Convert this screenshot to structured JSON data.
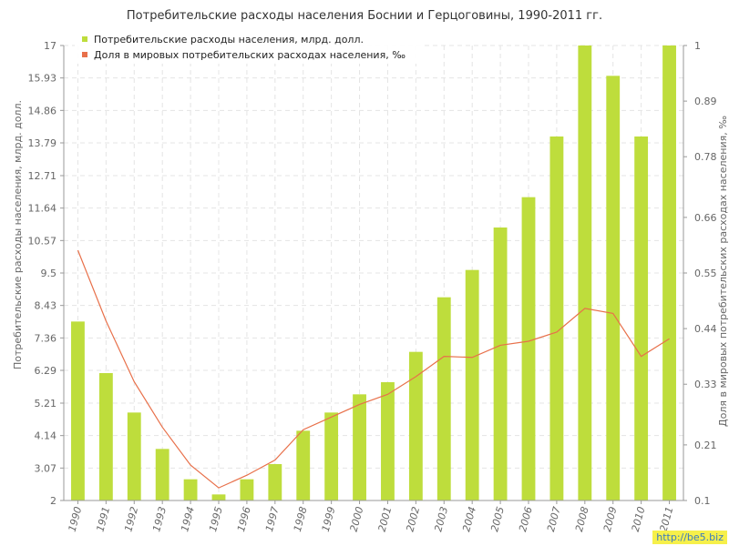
{
  "chart_data": {
    "type": "bar",
    "title": "Потребительские расходы населения Боснии и Герцоговины, 1990-2011 гг.",
    "ylabel": "Потребительские расходы населения, млрд. долл.",
    "y2label": "Доля в мировых потребительских расходах населения, ‰",
    "categories": [
      "1990",
      "1991",
      "1992",
      "1993",
      "1994",
      "1995",
      "1996",
      "1997",
      "1998",
      "1999",
      "2000",
      "2001",
      "2002",
      "2003",
      "2004",
      "2005",
      "2006",
      "2007",
      "2008",
      "2009",
      "2010",
      "2011"
    ],
    "ylim": [
      2,
      17
    ],
    "y2lim": [
      0.1,
      1
    ],
    "yticks": [
      "2",
      "3.07",
      "4.14",
      "5.21",
      "6.29",
      "7.36",
      "8.43",
      "9.5",
      "10.57",
      "11.64",
      "12.71",
      "13.79",
      "14.86",
      "15.93",
      "17"
    ],
    "y2ticks": [
      "0.1",
      "0.21",
      "0.33",
      "0.44",
      "0.55",
      "0.66",
      "0.78",
      "0.89",
      "1"
    ],
    "grid": true,
    "legend_position": "top-left",
    "series": [
      {
        "name": "Потребительские расходы населения, млрд. долл.",
        "type": "bar",
        "axis": "left",
        "color": "#bedd3c",
        "values": [
          7.9,
          6.2,
          4.9,
          3.7,
          2.7,
          2.2,
          2.7,
          3.2,
          4.3,
          4.9,
          5.5,
          5.9,
          6.9,
          8.7,
          9.6,
          11.0,
          12.0,
          14.0,
          17.0,
          16.0,
          14.0,
          17.0
        ]
      },
      {
        "name": "Доля в мировых потребительских расходах населения, ‰",
        "type": "line",
        "axis": "right",
        "color": "#e8704a",
        "values": [
          0.595,
          0.455,
          0.335,
          0.245,
          0.17,
          0.125,
          0.15,
          0.18,
          0.24,
          0.265,
          0.29,
          0.31,
          0.345,
          0.385,
          0.383,
          0.407,
          0.415,
          0.433,
          0.48,
          0.47,
          0.385,
          0.42
        ]
      }
    ]
  },
  "watermark": "http://be5.biz"
}
